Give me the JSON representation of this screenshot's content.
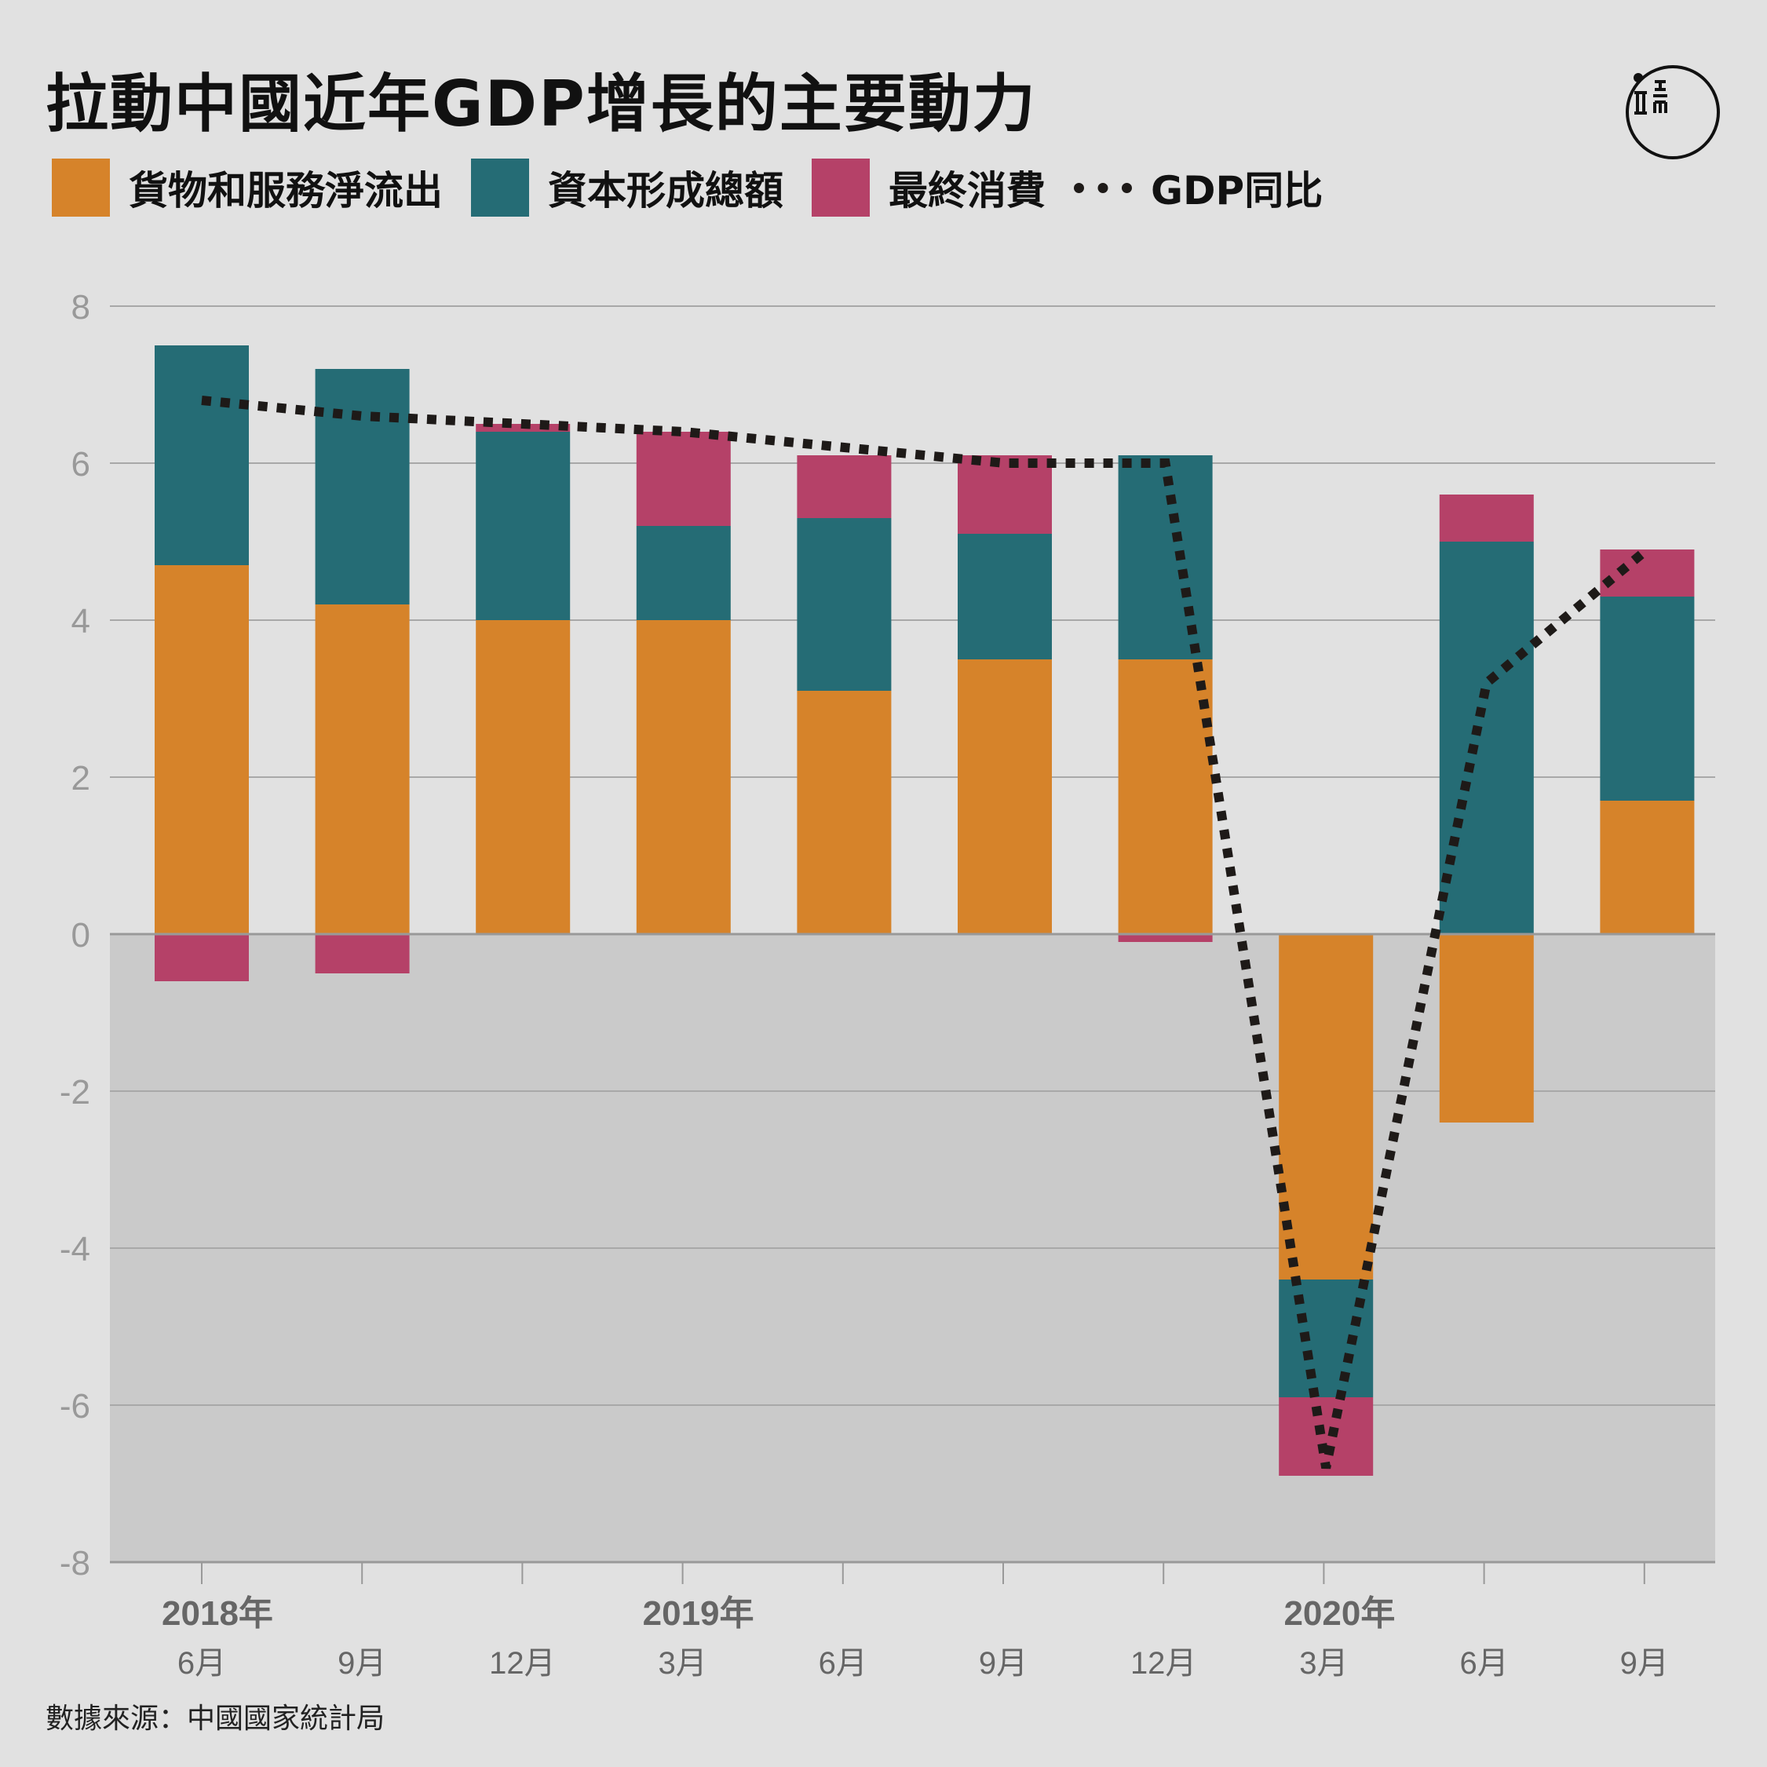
{
  "title": "拉動中國近年GDP增長的主要動力",
  "source": "數據來源：中國國家統計局",
  "colors": {
    "net_exports": "#d6832a",
    "capital": "#256c75",
    "consumption": "#b54168",
    "gdp_line": "#1e1a18",
    "negative_band": "#cacaca",
    "background": "#e1e1e1",
    "grid": "#a8a8a8"
  },
  "legend": [
    {
      "label": "貨物和服務淨流出",
      "color": "#d6832a",
      "kind": "box"
    },
    {
      "label": "資本形成總額",
      "color": "#256c75",
      "kind": "box"
    },
    {
      "label": "最終消費",
      "color": "#b54168",
      "kind": "box"
    },
    {
      "label": "GDP同比",
      "color": "#1e1a18",
      "kind": "dotted-line"
    }
  ],
  "logo_icon": "端-logo-icon",
  "chart_data": {
    "type": "bar",
    "stacked": true,
    "categories": [
      "6月",
      "9月",
      "12月",
      "3月",
      "6月",
      "9月",
      "12月",
      "3月",
      "6月",
      "9月"
    ],
    "year_labels": [
      {
        "index": 0,
        "label": "2018年"
      },
      {
        "index": 3,
        "label": "2019年"
      },
      {
        "index": 7,
        "label": "2020年"
      }
    ],
    "series": [
      {
        "name": "貨物和服務淨流出",
        "values": [
          4.7,
          4.2,
          4.0,
          4.0,
          3.1,
          3.5,
          3.5,
          -4.4,
          -2.4,
          1.7
        ]
      },
      {
        "name": "資本形成總額",
        "values": [
          2.8,
          3.0,
          2.4,
          1.2,
          2.2,
          1.6,
          2.6,
          -1.5,
          5.0,
          2.6
        ]
      },
      {
        "name": "最終消費",
        "values": [
          -0.6,
          -0.5,
          0.1,
          1.2,
          0.8,
          1.0,
          -0.1,
          -1.0,
          0.6,
          0.6
        ]
      }
    ],
    "line": {
      "name": "GDP同比",
      "values": [
        6.8,
        6.6,
        6.5,
        6.4,
        6.2,
        6.0,
        6.0,
        -6.8,
        3.2,
        4.9
      ]
    },
    "ylim": [
      -8,
      8
    ],
    "yticks": [
      8,
      6,
      4,
      2,
      0,
      -2,
      -4,
      -6,
      -8
    ],
    "grid": true
  }
}
